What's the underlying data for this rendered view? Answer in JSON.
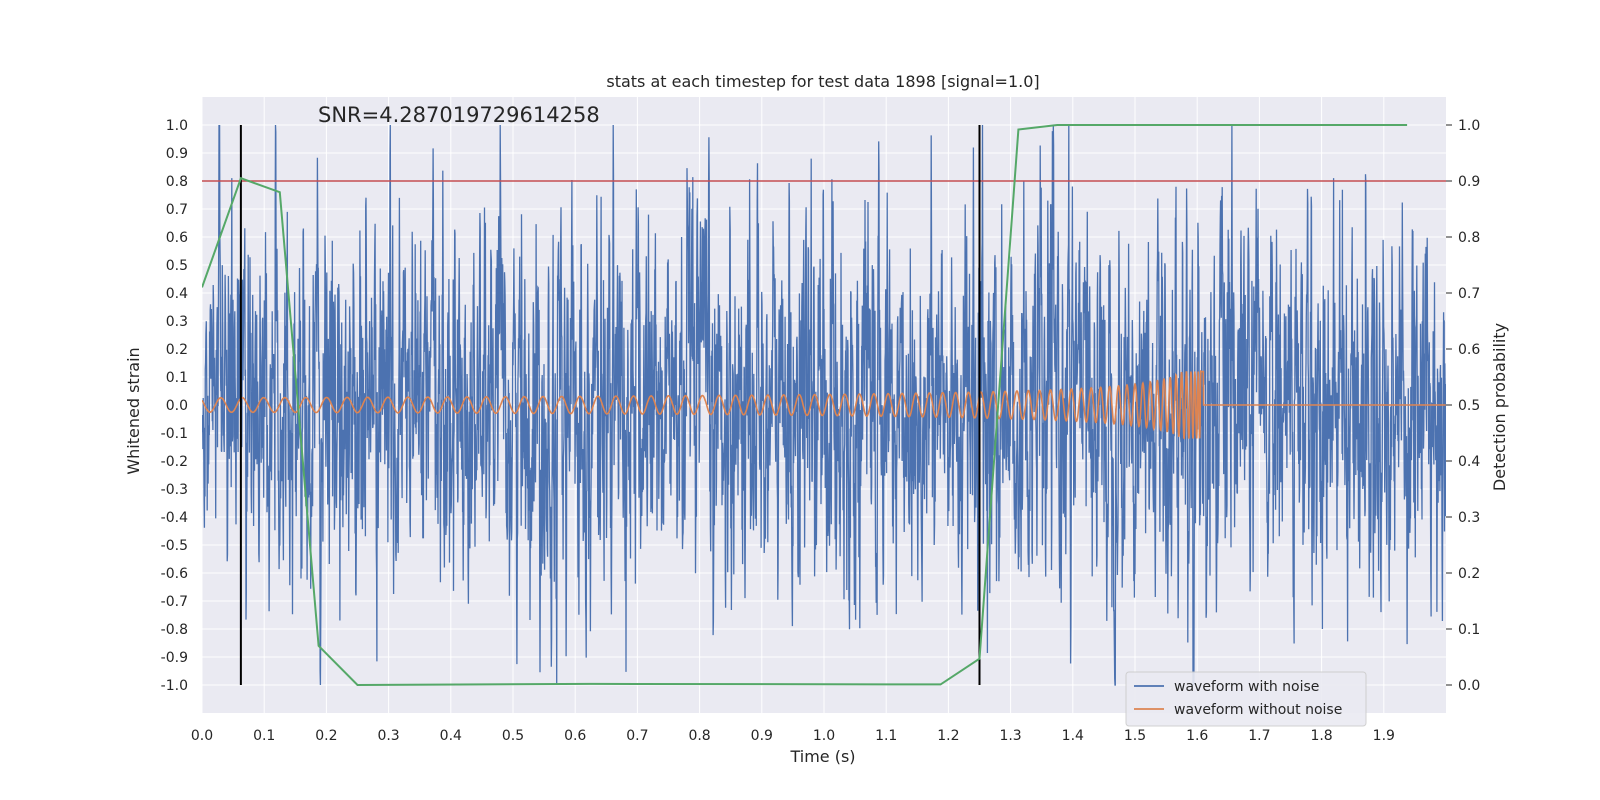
{
  "colors": {
    "background": "#eaeaf2",
    "grid": "#ffffff",
    "noisy": "#4c72b0",
    "clean": "#dd8452",
    "probability": "#55a868",
    "threshold": "#c44e52",
    "markers": "#000000"
  },
  "chart_data": {
    "type": "line",
    "title": "stats at each timestep for test data 1898 [signal=1.0]",
    "annotation": "SNR=4.287019729614258",
    "xlabel": "Time (s)",
    "ylabel_left": "Whitened strain",
    "ylabel_right": "Detection probability",
    "xlim": [
      0.0,
      2.0
    ],
    "ylim_left": [
      -1.1,
      1.1
    ],
    "ylim_right": [
      -0.05,
      1.05
    ],
    "x_ticks": [
      "0.0",
      "0.1",
      "0.2",
      "0.3",
      "0.4",
      "0.5",
      "0.6",
      "0.7",
      "0.8",
      "0.9",
      "1.0",
      "1.1",
      "1.2",
      "1.3",
      "1.4",
      "1.5",
      "1.6",
      "1.7",
      "1.8",
      "1.9"
    ],
    "y_ticks_left": [
      "1.0",
      "0.9",
      "0.8",
      "0.7",
      "0.6",
      "0.5",
      "0.4",
      "0.3",
      "0.2",
      "0.1",
      "0.0",
      "-0.1",
      "-0.2",
      "-0.3",
      "-0.4",
      "-0.5",
      "-0.6",
      "-0.7",
      "-0.8",
      "-0.9",
      "-1.0"
    ],
    "y_ticks_right": [
      "1.0",
      "0.9",
      "0.8",
      "0.7",
      "0.6",
      "0.5",
      "0.4",
      "0.3",
      "0.2",
      "0.1",
      "0.0"
    ],
    "threshold_probability": 0.9,
    "vertical_markers": [
      0.0625,
      1.25
    ],
    "series": [
      {
        "name": "waveform with noise",
        "axis": "left",
        "description": "whitened noisy strain, ~2048 Hz samples, amplitude within [-1, 1]",
        "amplitude_range": [
          -1.0,
          1.0
        ]
      },
      {
        "name": "waveform without noise",
        "axis": "left",
        "description": "chirp signal, frequency increasing until merger near 1.61 s",
        "amplitude_start": 0.025,
        "amplitude_peak": 0.12,
        "merger_time": 1.61
      },
      {
        "name": "Detection probability",
        "axis": "right",
        "x": [
          0.0,
          0.0625,
          0.125,
          0.1875,
          0.25,
          0.625,
          1.1875,
          1.25,
          1.3125,
          1.375,
          1.9375
        ],
        "y": [
          0.71,
          0.905,
          0.88,
          0.07,
          0.0,
          0.002,
          0.001,
          0.047,
          0.992,
          1.0,
          1.0
        ]
      }
    ],
    "legend": {
      "position": "lower-right",
      "entries": [
        "waveform with noise",
        "waveform without noise"
      ]
    }
  }
}
